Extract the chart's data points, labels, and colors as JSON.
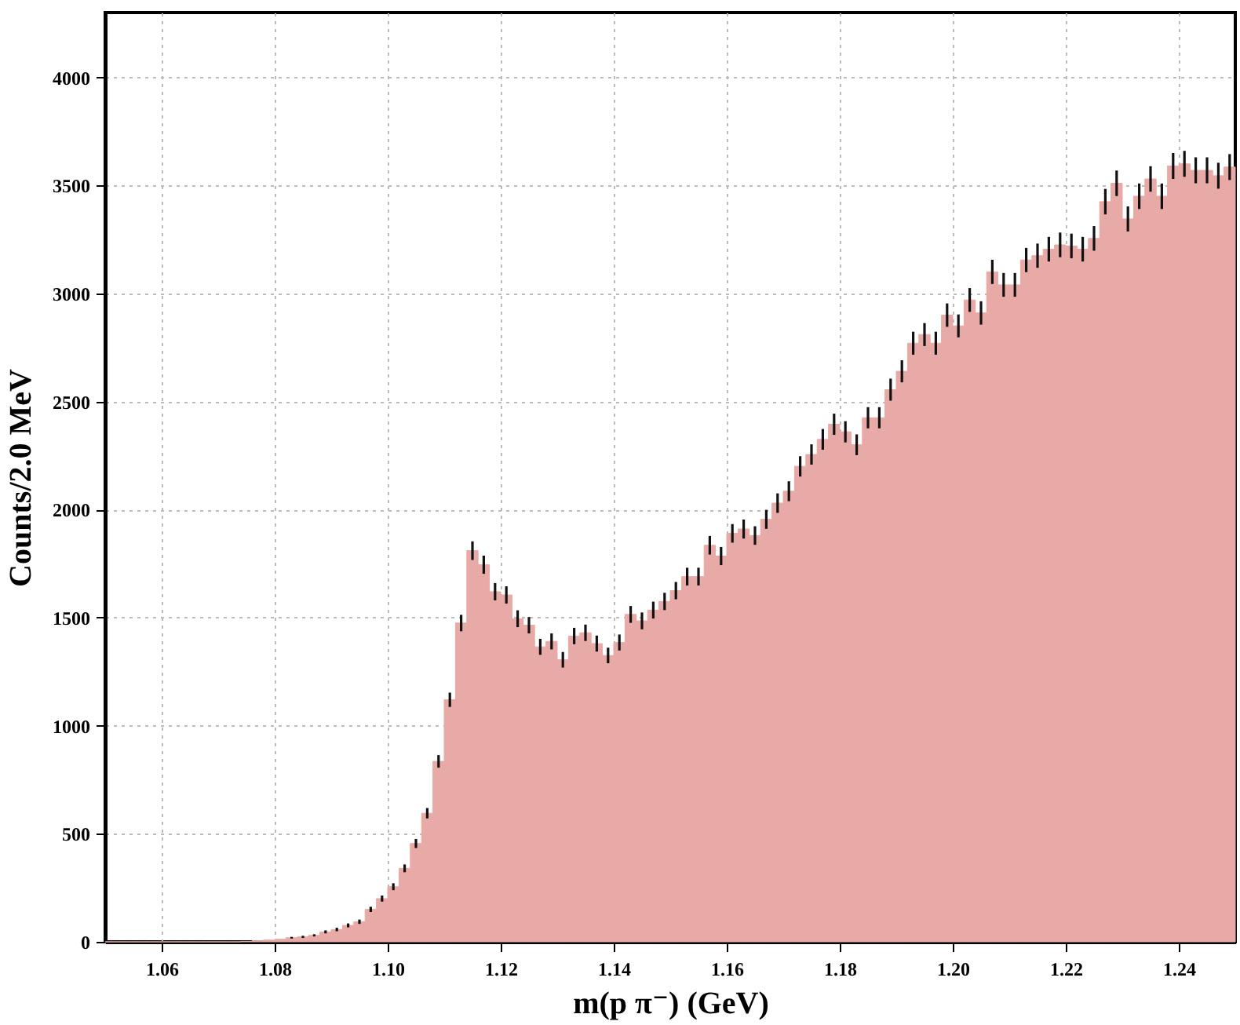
{
  "chart_data": {
    "type": "histogram",
    "xlabel": "m(p π⁻) (GeV)",
    "ylabel": "Counts/2.0 MeV",
    "bins": [
      1.05,
      1.052,
      1.054,
      1.056,
      1.058,
      1.06,
      1.062,
      1.064,
      1.066,
      1.068,
      1.07,
      1.072,
      1.074,
      1.076,
      1.078,
      1.08,
      1.082,
      1.084,
      1.086,
      1.088,
      1.09,
      1.092,
      1.094,
      1.096,
      1.098,
      1.1,
      1.102,
      1.104,
      1.106,
      1.108,
      1.11,
      1.112,
      1.114,
      1.116,
      1.118,
      1.12,
      1.122,
      1.124,
      1.126,
      1.128,
      1.13,
      1.132,
      1.134,
      1.136,
      1.138,
      1.14,
      1.142,
      1.144,
      1.146,
      1.148,
      1.15,
      1.152,
      1.154,
      1.156,
      1.158,
      1.16,
      1.162,
      1.164,
      1.166,
      1.168,
      1.17,
      1.172,
      1.174,
      1.176,
      1.178,
      1.18,
      1.182,
      1.184,
      1.186,
      1.188,
      1.19,
      1.192,
      1.194,
      1.196,
      1.198,
      1.2,
      1.202,
      1.204,
      1.206,
      1.208,
      1.21,
      1.212,
      1.214,
      1.216,
      1.218,
      1.22,
      1.222,
      1.224,
      1.226,
      1.228,
      1.23,
      1.232,
      1.234,
      1.236,
      1.238,
      1.24,
      1.242,
      1.244,
      1.246,
      1.248,
      1.25
    ],
    "values": [
      0,
      0,
      0,
      0,
      0,
      0,
      0,
      0,
      0,
      0,
      0,
      0,
      2,
      5,
      8,
      12,
      19,
      23,
      30,
      46,
      57,
      76,
      93,
      150,
      200,
      255,
      340,
      455,
      595,
      835,
      1120,
      1475,
      1810,
      1745,
      1620,
      1605,
      1495,
      1465,
      1365,
      1390,
      1305,
      1415,
      1430,
      1380,
      1325,
      1385,
      1515,
      1485,
      1535,
      1575,
      1625,
      1690,
      1690,
      1835,
      1785,
      1890,
      1910,
      1880,
      1955,
      2030,
      2085,
      2200,
      2255,
      2325,
      2395,
      2360,
      2300,
      2425,
      2425,
      2555,
      2640,
      2770,
      2810,
      2770,
      2900,
      2850,
      2970,
      2910,
      3100,
      3040,
      3040,
      3155,
      3175,
      3205,
      3225,
      3220,
      3205,
      3255,
      3425,
      3510,
      3345,
      3450,
      3530,
      3450,
      3590,
      3600,
      3570,
      3570,
      3545,
      3585
    ],
    "errors": [
      null,
      null,
      null,
      null,
      null,
      null,
      null,
      null,
      null,
      null,
      null,
      null,
      null,
      null,
      null,
      null,
      4,
      5,
      5,
      7,
      8,
      9,
      10,
      12,
      14,
      16,
      18,
      21,
      24,
      29,
      33,
      38,
      43,
      42,
      40,
      40,
      39,
      38,
      37,
      37,
      36,
      38,
      38,
      37,
      36,
      37,
      39,
      39,
      39,
      40,
      40,
      41,
      41,
      43,
      42,
      43,
      44,
      43,
      44,
      45,
      46,
      47,
      47,
      48,
      49,
      49,
      48,
      49,
      49,
      51,
      51,
      53,
      53,
      53,
      54,
      53,
      55,
      54,
      56,
      55,
      55,
      56,
      56,
      57,
      57,
      57,
      57,
      57,
      59,
      59,
      58,
      59,
      59,
      59,
      60,
      60,
      60,
      60,
      60,
      60
    ],
    "color": "#e8aaa6",
    "xlim": [
      1.05,
      1.25
    ],
    "xticks": [
      1.06,
      1.08,
      {
        "value": 1.1,
        "label": "1.10"
      },
      1.12,
      1.14,
      1.16,
      1.18,
      {
        "value": 1.2,
        "label": "1.20"
      },
      1.22,
      1.24
    ],
    "ylim": [
      0,
      4300
    ],
    "yticks": [
      0,
      500,
      1000,
      1500,
      2000,
      2500,
      3000,
      3500,
      4000
    ],
    "grid": true
  }
}
